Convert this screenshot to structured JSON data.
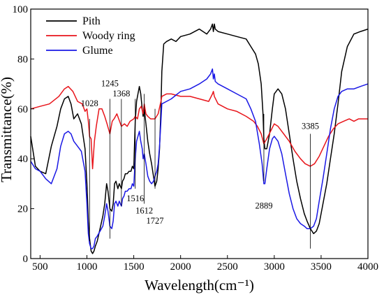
{
  "chart_data": {
    "type": "line",
    "xlabel": "Wavelength(cm⁻¹)",
    "ylabel": "Transmittance(%)",
    "xlim": [
      400,
      4000
    ],
    "ylim": [
      0,
      100
    ],
    "x_ticks": [
      500,
      1000,
      1500,
      2000,
      2500,
      3000,
      3500,
      4000
    ],
    "y_ticks": [
      0,
      20,
      40,
      60,
      80,
      100
    ],
    "grid": false,
    "legend_position": "top-left",
    "series": [
      {
        "name": "Pith",
        "color": "#000000",
        "x": [
          400,
          450,
          500,
          560,
          620,
          680,
          720,
          760,
          800,
          830,
          860,
          900,
          940,
          980,
          1000,
          1015,
          1028,
          1045,
          1060,
          1075,
          1090,
          1110,
          1140,
          1170,
          1190,
          1210,
          1225,
          1245,
          1265,
          1280,
          1295,
          1310,
          1330,
          1345,
          1368,
          1380,
          1395,
          1410,
          1430,
          1450,
          1470,
          1485,
          1500,
          1516,
          1530,
          1545,
          1560,
          1575,
          1590,
          1600,
          1612,
          1630,
          1650,
          1670,
          1690,
          1710,
          1727,
          1745,
          1760,
          1775,
          1790,
          1800,
          1820,
          1850,
          1900,
          1950,
          2000,
          2100,
          2200,
          2280,
          2320,
          2340,
          2350,
          2360,
          2370,
          2400,
          2500,
          2600,
          2700,
          2750,
          2800,
          2830,
          2860,
          2880,
          2889,
          2900,
          2920,
          2950,
          2980,
          3000,
          3040,
          3080,
          3120,
          3160,
          3200,
          3240,
          3280,
          3320,
          3350,
          3385,
          3420,
          3450,
          3480,
          3520,
          3560,
          3600,
          3640,
          3680,
          3720,
          3780,
          3850,
          3920,
          4000
        ],
        "y": [
          49,
          37,
          35,
          34,
          45,
          53,
          60,
          64,
          65,
          62,
          56,
          58,
          54,
          44,
          30,
          15,
          8,
          3,
          2,
          3,
          5,
          7,
          12,
          17,
          22,
          30,
          27,
          20,
          19,
          22,
          30,
          31,
          28,
          30,
          28,
          31,
          32,
          34,
          34,
          35,
          35,
          37,
          36,
          55,
          63,
          66,
          69,
          66,
          60,
          57,
          60,
          54,
          47,
          42,
          38,
          33,
          29,
          31,
          36,
          44,
          60,
          75,
          86,
          87,
          88,
          87,
          89,
          90,
          92,
          90,
          92,
          94,
          91,
          94,
          92,
          91,
          90,
          89,
          88,
          85,
          82,
          78,
          70,
          58,
          48,
          44,
          44,
          50,
          60,
          66,
          68,
          66,
          60,
          50,
          40,
          31,
          24,
          18,
          15,
          12,
          10,
          11,
          14,
          22,
          30,
          40,
          50,
          62,
          75,
          85,
          90,
          91,
          92
        ]
      },
      {
        "name": "Woody ring",
        "color": "#e8151b",
        "x": [
          400,
          500,
          600,
          700,
          760,
          800,
          850,
          900,
          950,
          980,
          1000,
          1015,
          1028,
          1045,
          1060,
          1080,
          1100,
          1130,
          1160,
          1190,
          1215,
          1245,
          1270,
          1290,
          1320,
          1368,
          1400,
          1430,
          1460,
          1500,
          1516,
          1540,
          1560,
          1580,
          1600,
          1612,
          1630,
          1650,
          1680,
          1727,
          1760,
          1790,
          1800,
          1850,
          1900,
          2000,
          2100,
          2200,
          2300,
          2340,
          2350,
          2360,
          2400,
          2500,
          2600,
          2700,
          2780,
          2820,
          2860,
          2889,
          2920,
          2960,
          3000,
          3040,
          3100,
          3160,
          3220,
          3280,
          3330,
          3385,
          3430,
          3480,
          3530,
          3580,
          3630,
          3680,
          3740,
          3800,
          3850,
          3900,
          3950,
          4000
        ],
        "y": [
          60,
          61,
          62,
          65,
          68,
          69,
          67,
          63,
          62,
          59,
          60,
          55,
          49,
          48,
          36,
          47,
          53,
          60,
          60,
          57,
          54,
          50,
          55,
          56,
          58,
          53,
          54,
          53,
          55,
          56,
          57,
          56,
          60,
          61,
          58,
          62,
          58,
          57,
          56,
          56,
          58,
          63,
          65,
          66,
          66,
          65,
          65,
          64,
          63,
          66,
          67,
          65,
          62,
          60,
          59,
          57,
          55,
          53,
          50,
          46,
          48,
          51,
          54,
          53,
          50,
          47,
          43,
          40,
          38,
          37,
          38,
          41,
          45,
          49,
          52,
          54,
          55,
          56,
          55,
          56,
          56,
          56
        ]
      },
      {
        "name": "Glume",
        "color": "#1a18e5",
        "x": [
          400,
          450,
          500,
          560,
          620,
          680,
          720,
          760,
          800,
          830,
          860,
          900,
          940,
          980,
          1000,
          1015,
          1028,
          1045,
          1060,
          1075,
          1090,
          1110,
          1140,
          1170,
          1190,
          1210,
          1225,
          1245,
          1265,
          1280,
          1295,
          1310,
          1330,
          1345,
          1368,
          1380,
          1395,
          1410,
          1430,
          1450,
          1470,
          1485,
          1500,
          1516,
          1530,
          1545,
          1560,
          1575,
          1590,
          1600,
          1612,
          1630,
          1650,
          1670,
          1690,
          1710,
          1727,
          1745,
          1760,
          1775,
          1790,
          1800,
          1850,
          1900,
          2000,
          2100,
          2200,
          2280,
          2320,
          2340,
          2350,
          2360,
          2370,
          2400,
          2500,
          2600,
          2700,
          2750,
          2800,
          2840,
          2870,
          2889,
          2900,
          2920,
          2950,
          2980,
          3000,
          3040,
          3080,
          3120,
          3160,
          3200,
          3240,
          3280,
          3320,
          3350,
          3385,
          3420,
          3450,
          3480,
          3520,
          3560,
          3600,
          3640,
          3680,
          3720,
          3780,
          3850,
          3920,
          4000
        ],
        "y": [
          39,
          36,
          35,
          32,
          30,
          36,
          45,
          50,
          51,
          50,
          47,
          45,
          43,
          35,
          22,
          10,
          6,
          4,
          4,
          5,
          8,
          9,
          11,
          13,
          17,
          22,
          19,
          13,
          12,
          15,
          22,
          23,
          21,
          23,
          21,
          24,
          25,
          27,
          27,
          28,
          28,
          30,
          29,
          40,
          47,
          49,
          51,
          47,
          44,
          40,
          42,
          38,
          33,
          31,
          30,
          31,
          33,
          35,
          38,
          45,
          55,
          62,
          63,
          64,
          67,
          68,
          70,
          72,
          74,
          76,
          72,
          74,
          71,
          70,
          68,
          66,
          64,
          60,
          55,
          46,
          38,
          30,
          30,
          36,
          44,
          48,
          49,
          47,
          42,
          34,
          26,
          20,
          16,
          14,
          13,
          12,
          12,
          13,
          16,
          23,
          32,
          42,
          52,
          60,
          65,
          67,
          68,
          68,
          69,
          70
        ]
      }
    ],
    "annotations": [
      {
        "label": "1028",
        "x": 1028,
        "line_from": 7,
        "line_to": 56,
        "text_y": 61
      },
      {
        "label": "1245",
        "x": 1245,
        "line_from": 8,
        "line_to": 64,
        "text_y": 69
      },
      {
        "label": "1368",
        "x": 1368,
        "line_from": 21,
        "line_to": 64,
        "text_y": 65
      },
      {
        "label": "1516",
        "x": 1516,
        "line_from": 28,
        "line_to": 64,
        "text_y": 23
      },
      {
        "label": "1612",
        "x": 1612,
        "line_from": 22,
        "line_to": 66,
        "text_y": 18
      },
      {
        "label": "1727",
        "x": 1727,
        "line_from": 28,
        "line_to": 60,
        "text_y": 14
      },
      {
        "label": "2889",
        "x": 2889,
        "line_from": 31,
        "line_to": 58,
        "text_y": 20
      },
      {
        "label": "3385",
        "x": 3385,
        "line_from": 4,
        "line_to": 50,
        "text_y": 52
      }
    ]
  }
}
